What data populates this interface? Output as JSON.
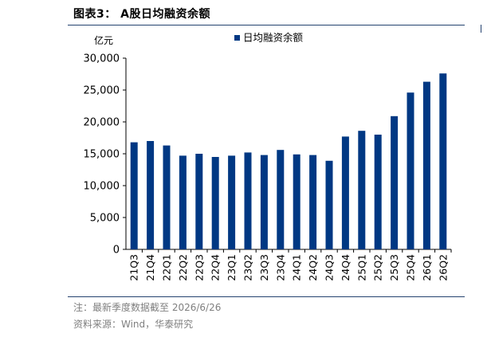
{
  "header": {
    "figure_label": "图表3：",
    "title": "A股日均融资余额"
  },
  "footer": {
    "note": "注：最新季度数据截至 2026/6/26",
    "source": "资料来源：Wind，华泰研究"
  },
  "colors": {
    "bar": "#003883",
    "rule": "#24426f",
    "footnote": "#7f7f7f"
  },
  "chart_data": {
    "type": "bar",
    "title": "",
    "ylabel": "亿元",
    "xlabel": "",
    "ylim": [
      0,
      30000
    ],
    "yticks": [
      0,
      5000,
      10000,
      15000,
      20000,
      25000,
      30000
    ],
    "ytick_labels": [
      "0",
      "5,000",
      "10,000",
      "15,000",
      "20,000",
      "25,000",
      "30,000"
    ],
    "legend_position": "top-center",
    "grid": false,
    "categories": [
      "21Q3",
      "21Q4",
      "22Q1",
      "22Q2",
      "22Q3",
      "22Q4",
      "23Q1",
      "23Q2",
      "23Q3",
      "23Q4",
      "24Q1",
      "24Q2",
      "24Q3",
      "24Q4",
      "25Q1",
      "25Q2",
      "25Q3",
      "25Q4",
      "26Q1",
      "26Q2"
    ],
    "series": [
      {
        "name": "日均融资余额",
        "values": [
          16800,
          17000,
          16300,
          14700,
          15000,
          14500,
          14700,
          15200,
          14800,
          15600,
          14900,
          14800,
          13900,
          17700,
          18600,
          18000,
          20900,
          24600,
          26300,
          27600
        ]
      }
    ]
  }
}
